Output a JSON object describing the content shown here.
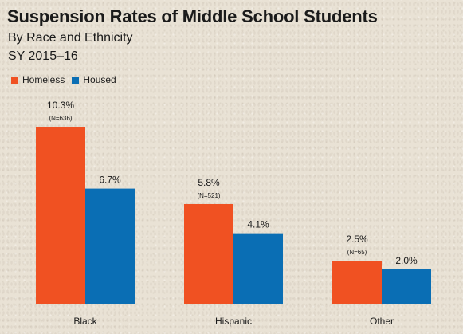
{
  "chart_data": {
    "type": "bar",
    "title": "Suspension Rates of Middle School Students",
    "subtitle_lines": [
      "By Race and Ethnicity",
      "SY 2015–16"
    ],
    "categories": [
      "Black",
      "Hispanic",
      "Other"
    ],
    "series": [
      {
        "name": "Homeless",
        "color": "#f05122",
        "values": [
          10.3,
          5.8,
          2.5
        ],
        "labels": [
          "10.3%",
          "5.8%",
          "2.5%"
        ],
        "sublabels": [
          "(N=636)",
          "(N=521)",
          "(N=65)"
        ]
      },
      {
        "name": "Housed",
        "color": "#0a6eb4",
        "values": [
          6.7,
          4.1,
          2.0
        ],
        "labels": [
          "6.7%",
          "4.1%",
          "2.0%"
        ],
        "sublabels": [
          "",
          "",
          ""
        ]
      }
    ],
    "xlabel": "",
    "ylabel": "",
    "ylim": [
      0,
      10.3
    ],
    "grid": false,
    "legend_position": "top-left"
  }
}
